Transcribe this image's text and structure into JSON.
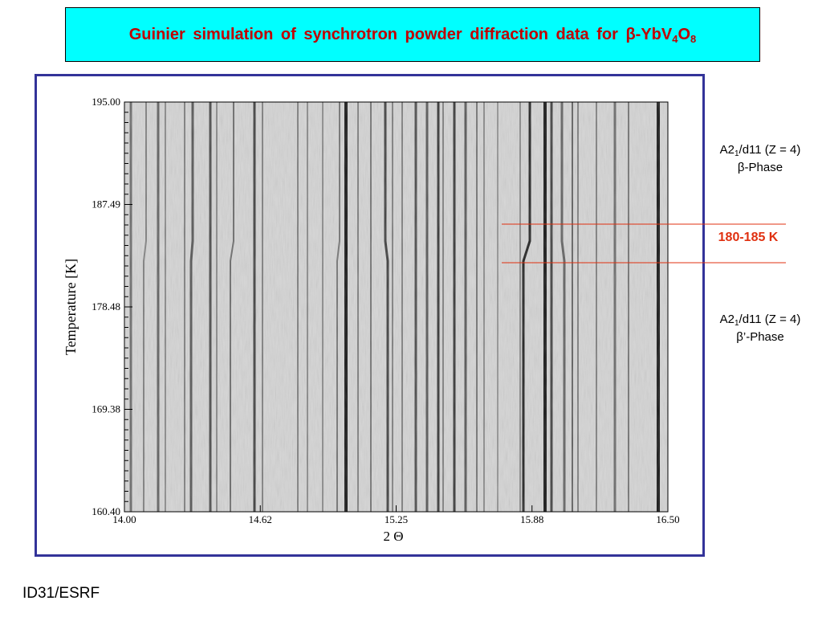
{
  "header": {
    "title": [
      "Guinier simulation of synchrotron powder diffraction data for β-YbV",
      "4",
      "O",
      "8"
    ]
  },
  "plot": {
    "x_label": "2 Θ",
    "y_label": "Temperature [K]",
    "xticks": [
      "14.00",
      "14.62",
      "15.25",
      "15.88",
      "16.50"
    ],
    "yticks": [
      "195.00",
      "187.49",
      "178.48",
      "169.38",
      "160.40"
    ]
  },
  "annotations": {
    "upper": {
      "line1": [
        "A2",
        "1",
        "/d11 (Z = 4)"
      ],
      "line2": "β-Phase"
    },
    "range": "180-185 K",
    "lower": {
      "line1": [
        "A2",
        "1",
        "/d11 (Z = 4)"
      ],
      "line2": "β’-Phase"
    }
  },
  "footer": "ID31/ESRF"
}
